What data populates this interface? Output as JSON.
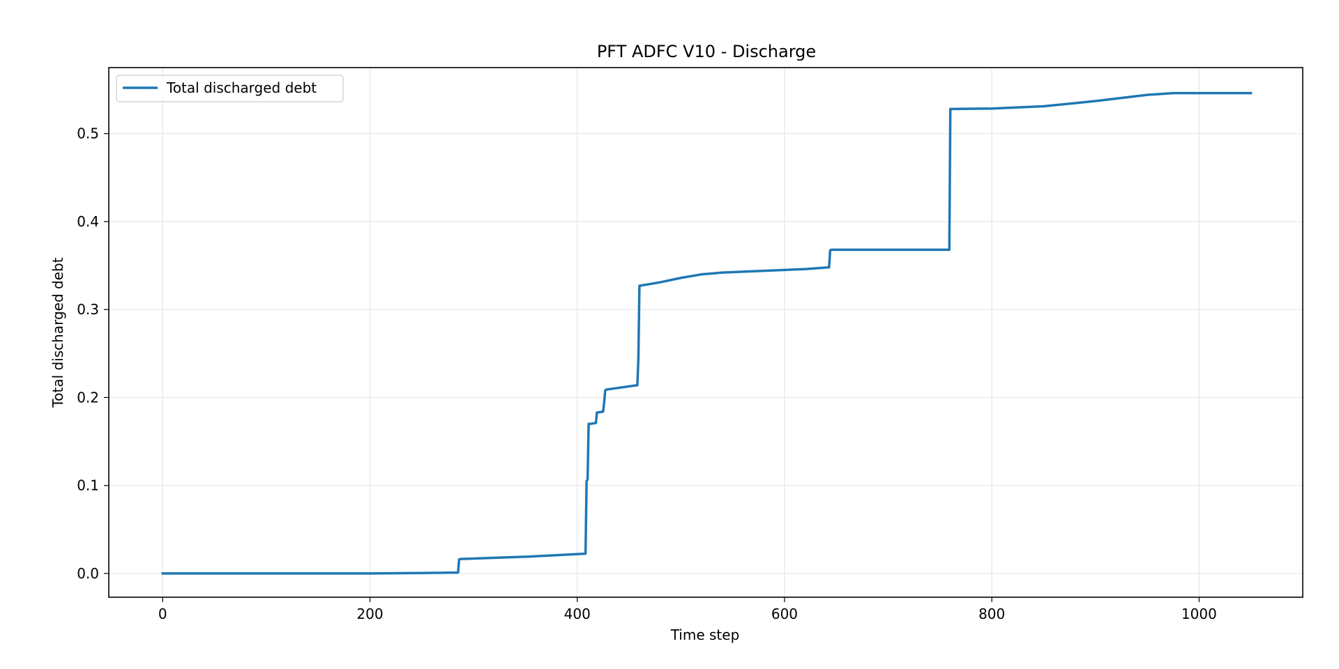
{
  "chart_data": {
    "type": "line",
    "title": "PFT ADFC V10 - Discharge",
    "xlabel": "Time step",
    "ylabel": "Total discharged debt",
    "xlim": [
      -52,
      1100
    ],
    "ylim": [
      -0.027,
      0.575
    ],
    "xticks": [
      0,
      200,
      400,
      600,
      800,
      1000
    ],
    "yticks": [
      0.0,
      0.1,
      0.2,
      0.3,
      0.4,
      0.5
    ],
    "xtick_labels": [
      "0",
      "200",
      "400",
      "600",
      "800",
      "1000"
    ],
    "ytick_labels": [
      "0.0",
      "0.1",
      "0.2",
      "0.3",
      "0.4",
      "0.5"
    ],
    "grid": true,
    "legend_position": "upper-left",
    "series": [
      {
        "name": "Total discharged debt",
        "color": "#1f77b4",
        "x": [
          0,
          100,
          200,
          250,
          285,
          286,
          288,
          300,
          350,
          400,
          408,
          409,
          409.5,
          410,
          411,
          412,
          418,
          419,
          420,
          425,
          426,
          427,
          428,
          458,
          459,
          460,
          480,
          500,
          520,
          540,
          560,
          580,
          600,
          620,
          643,
          644,
          645,
          700,
          759,
          760,
          761,
          800,
          850,
          900,
          950,
          975,
          1000,
          1050
        ],
        "y": [
          0.0,
          0.0,
          0.0,
          0.0005,
          0.001,
          0.016,
          0.0165,
          0.017,
          0.019,
          0.022,
          0.0225,
          0.105,
          0.106,
          0.107,
          0.17,
          0.17,
          0.171,
          0.183,
          0.183,
          0.184,
          0.195,
          0.208,
          0.209,
          0.214,
          0.245,
          0.327,
          0.331,
          0.336,
          0.34,
          0.342,
          0.343,
          0.344,
          0.345,
          0.346,
          0.348,
          0.367,
          0.368,
          0.368,
          0.368,
          0.528,
          0.528,
          0.5285,
          0.531,
          0.537,
          0.544,
          0.546,
          0.546,
          0.546
        ]
      }
    ]
  }
}
